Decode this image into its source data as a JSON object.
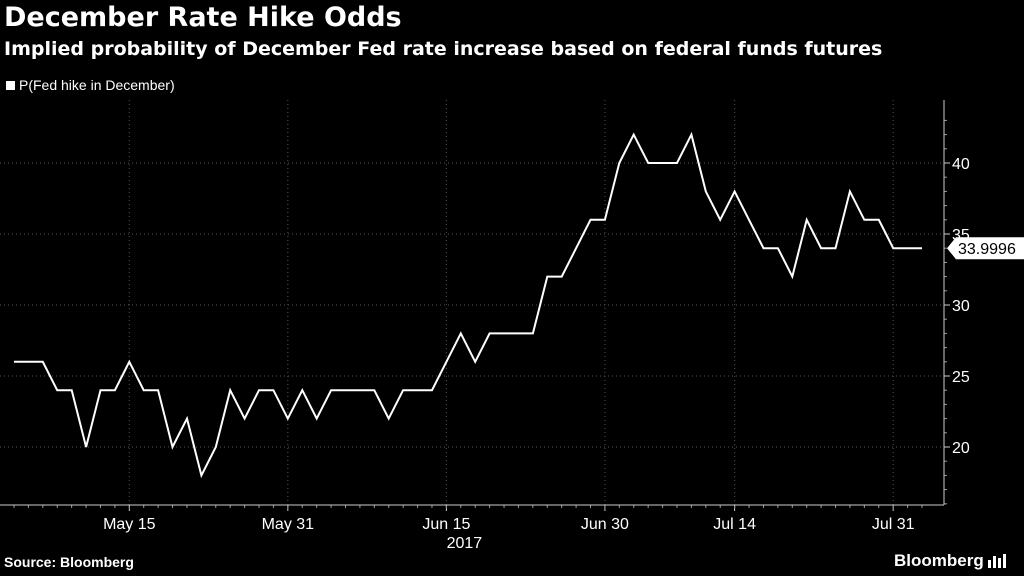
{
  "header": {
    "title": "December Rate Hike Odds",
    "subtitle": "Implied probability of December Fed rate increase based on federal funds futures"
  },
  "footer": {
    "source": "Source: Bloomberg",
    "brand": "Bloomberg"
  },
  "chart_data": {
    "type": "line",
    "legend": [
      "P(Fed hike in December)"
    ],
    "legend_position": "top-left",
    "grid": "dotted",
    "y_axis_side": "right",
    "ylim": [
      15,
      44
    ],
    "y_ticks": [
      20,
      25,
      30,
      35,
      40
    ],
    "x_ticks": [
      {
        "label": "May 15",
        "index": 8
      },
      {
        "label": "May 31",
        "index": 19
      },
      {
        "label": "Jun 15",
        "index": 30
      },
      {
        "label": "Jun 30",
        "index": 41
      },
      {
        "label": "Jul 14",
        "index": 50
      },
      {
        "label": "Jul 31",
        "index": 61
      }
    ],
    "x_year_label": "2017",
    "last_value_label": "33.9996",
    "series": [
      {
        "name": "P(Fed hike in December)",
        "color": "#ffffff",
        "values": [
          26,
          26,
          26,
          24,
          24,
          20,
          24,
          24,
          26,
          24,
          24,
          20,
          22,
          18,
          20,
          24,
          22,
          24,
          24,
          22,
          24,
          22,
          24,
          24,
          24,
          24,
          22,
          24,
          24,
          24,
          26,
          28,
          26,
          28,
          28,
          28,
          28,
          32,
          32,
          34,
          36,
          36,
          40,
          42,
          40,
          40,
          40,
          42,
          38,
          36,
          38,
          36,
          34,
          34,
          32,
          36,
          34,
          34,
          38,
          36,
          36,
          34,
          34,
          33.9996
        ]
      }
    ]
  }
}
